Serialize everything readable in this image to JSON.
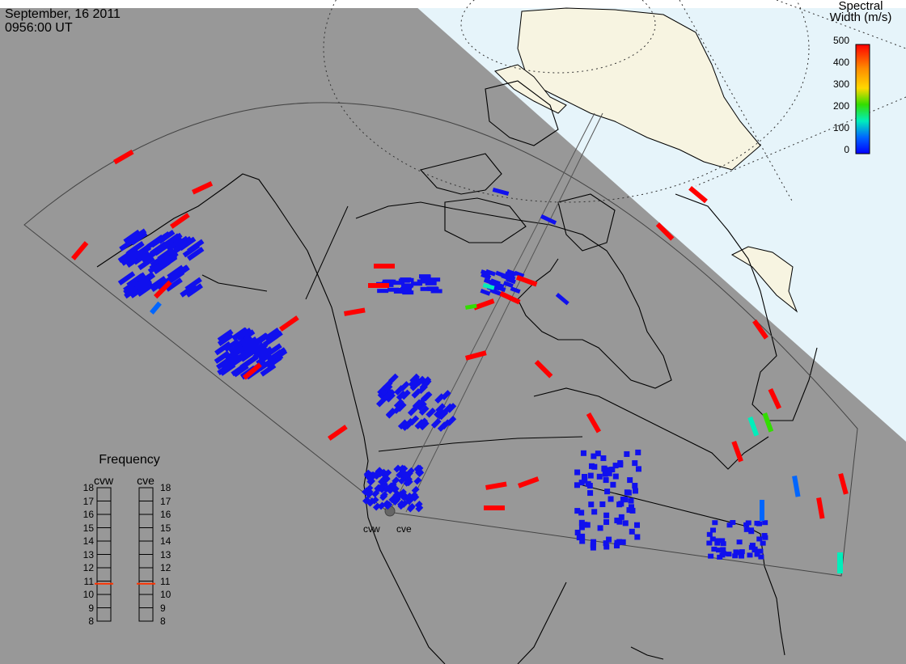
{
  "header": {
    "date": "September, 16 2011",
    "time": "0956:00 UT"
  },
  "colorbar": {
    "title_line1": "Spectral",
    "title_line2": "Width (m/s)",
    "ticks": [
      "500",
      "400",
      "300",
      "200",
      "100",
      "0"
    ],
    "min": 0,
    "max": 500,
    "colors": [
      "#ff0000",
      "#ff8c00",
      "#ffd800",
      "#33dd00",
      "#00eebb",
      "#0066ff",
      "#0000ff"
    ]
  },
  "frequency": {
    "title": "Frequency",
    "radars": [
      {
        "name": "cvw",
        "value_mhz": 10.8
      },
      {
        "name": "cve",
        "value_mhz": 10.8
      }
    ],
    "ticks": [
      "18",
      "17",
      "16",
      "15",
      "14",
      "13",
      "12",
      "11",
      "10",
      "9",
      "8"
    ],
    "marker_color": "#ff3300"
  },
  "radar_labels": [
    "cvw",
    "cve"
  ],
  "colors": {
    "ocean_night": "#989898",
    "dayside": "#e6f4fa",
    "land_dayside": "#f7f4e1",
    "low": "#1010ee",
    "high": "#ff0000"
  }
}
